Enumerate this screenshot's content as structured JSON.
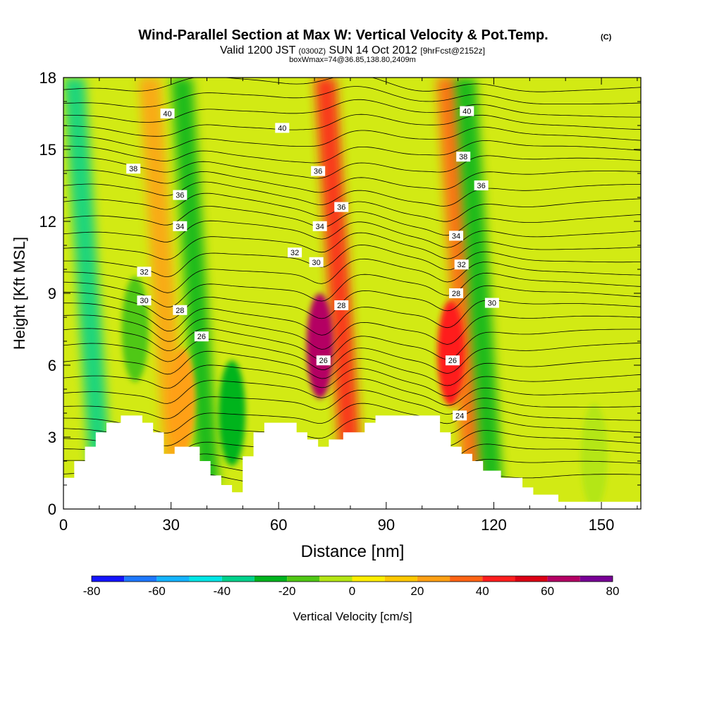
{
  "chart_data": {
    "type": "heatmap",
    "title": "Wind-Parallel Section at Max W: Vertical Velocity & Pot.Temp.",
    "title_mark": "(C)",
    "subtitle": {
      "pre": "Valid 1200 JST",
      "zulu": "(0300Z)",
      "date": "SUN 14 Oct 2012",
      "forecast": "[9hrFcst@2152z]"
    },
    "info_line": "boxWmax=74@36.85,138.80,2409m",
    "xlabel": "Distance [nm]",
    "ylabel": "Height [Kft MSL]",
    "xlim": [
      0,
      161
    ],
    "ylim": [
      0,
      18
    ],
    "x_ticks": [
      0,
      30,
      60,
      90,
      120,
      150
    ],
    "y_ticks": [
      0,
      3,
      6,
      9,
      12,
      15,
      18
    ],
    "grid": false,
    "colorbar": {
      "label": "Vertical Velocity [cm/s]",
      "placement": "bottom",
      "levels": [
        -80,
        -70,
        -60,
        -50,
        -40,
        -30,
        -20,
        -10,
        0,
        10,
        20,
        30,
        40,
        50,
        60,
        70,
        80
      ],
      "tick_labels": [
        -80,
        -60,
        -40,
        -20,
        0,
        20,
        40,
        60,
        80
      ],
      "colors": [
        "#1414ff",
        "#1e78ff",
        "#14b4ff",
        "#00e6e6",
        "#00d28c",
        "#00b41e",
        "#50c814",
        "#b4e614",
        "#ffee00",
        "#ffc800",
        "#ffa014",
        "#ff6414",
        "#ff1e1e",
        "#dc0014",
        "#b40064",
        "#780096"
      ]
    },
    "velocity_bands": [
      {
        "x": 3,
        "w": 3,
        "v": -40
      },
      {
        "x": 24,
        "w": 3,
        "v": 25
      },
      {
        "x": 33,
        "w": 3,
        "v": -22
      },
      {
        "x": 73,
        "w": 3,
        "v": 45
      },
      {
        "x": 107,
        "w": 3,
        "v": 38
      },
      {
        "x": 112,
        "w": 3,
        "v": -28
      }
    ],
    "velocity_cells": [
      {
        "x": 71.5,
        "z": 6.8,
        "v": 65
      },
      {
        "x": 108,
        "z": 6.5,
        "v": 45
      },
      {
        "x": 33,
        "z": 4.5,
        "v": 22
      },
      {
        "x": 47,
        "z": 4.0,
        "v": -22
      },
      {
        "x": 148,
        "z": 2.2,
        "v": -8
      },
      {
        "x": 20,
        "z": 7.5,
        "v": -15
      }
    ],
    "terrain": [
      [
        0,
        1.3
      ],
      [
        3,
        1.3
      ],
      [
        3,
        2.0
      ],
      [
        6,
        2.0
      ],
      [
        6,
        2.6
      ],
      [
        9,
        2.6
      ],
      [
        9,
        3.2
      ],
      [
        12,
        3.2
      ],
      [
        12,
        3.6
      ],
      [
        16,
        3.6
      ],
      [
        16,
        3.9
      ],
      [
        22,
        3.9
      ],
      [
        22,
        3.6
      ],
      [
        25,
        3.6
      ],
      [
        25,
        3.2
      ],
      [
        28,
        3.2
      ],
      [
        28,
        2.3
      ],
      [
        31,
        2.3
      ],
      [
        31,
        2.6
      ],
      [
        38,
        2.6
      ],
      [
        38,
        2.0
      ],
      [
        41,
        2.0
      ],
      [
        41,
        1.4
      ],
      [
        44,
        1.4
      ],
      [
        44,
        1.0
      ],
      [
        47,
        1.0
      ],
      [
        47,
        0.7
      ],
      [
        50,
        0.7
      ],
      [
        50,
        2.2
      ],
      [
        53,
        2.2
      ],
      [
        53,
        3.2
      ],
      [
        56,
        3.2
      ],
      [
        56,
        3.6
      ],
      [
        65,
        3.6
      ],
      [
        65,
        3.2
      ],
      [
        68,
        3.2
      ],
      [
        68,
        2.9
      ],
      [
        71,
        2.9
      ],
      [
        71,
        2.6
      ],
      [
        74,
        2.6
      ],
      [
        74,
        2.9
      ],
      [
        78,
        2.9
      ],
      [
        78,
        3.2
      ],
      [
        84,
        3.2
      ],
      [
        84,
        3.6
      ],
      [
        87,
        3.6
      ],
      [
        87,
        3.9
      ],
      [
        105,
        3.9
      ],
      [
        105,
        3.2
      ],
      [
        108,
        3.2
      ],
      [
        108,
        2.6
      ],
      [
        111,
        2.6
      ],
      [
        111,
        2.3
      ],
      [
        114,
        2.3
      ],
      [
        114,
        2.0
      ],
      [
        117,
        2.0
      ],
      [
        117,
        1.6
      ],
      [
        122,
        1.6
      ],
      [
        122,
        1.3
      ],
      [
        128,
        1.3
      ],
      [
        128,
        0.9
      ],
      [
        131,
        0.9
      ],
      [
        131,
        0.6
      ],
      [
        138,
        0.6
      ],
      [
        138,
        0.3
      ],
      [
        161,
        0.3
      ]
    ],
    "contour_labels": [
      {
        "x": 29,
        "z": 16.5,
        "text": "40"
      },
      {
        "x": 61,
        "z": 15.9,
        "text": "40"
      },
      {
        "x": 112.5,
        "z": 16.6,
        "text": "40"
      },
      {
        "x": 19.5,
        "z": 14.2,
        "text": "38"
      },
      {
        "x": 111.5,
        "z": 14.7,
        "text": "38"
      },
      {
        "x": 32.5,
        "z": 13.1,
        "text": "36"
      },
      {
        "x": 71,
        "z": 14.1,
        "text": "36"
      },
      {
        "x": 77.5,
        "z": 12.6,
        "text": "36"
      },
      {
        "x": 116.5,
        "z": 13.5,
        "text": "36"
      },
      {
        "x": 32.5,
        "z": 11.8,
        "text": "34"
      },
      {
        "x": 71.5,
        "z": 11.8,
        "text": "34"
      },
      {
        "x": 109.5,
        "z": 11.4,
        "text": "34"
      },
      {
        "x": 22.5,
        "z": 9.9,
        "text": "32"
      },
      {
        "x": 64.5,
        "z": 10.7,
        "text": "32"
      },
      {
        "x": 111,
        "z": 10.2,
        "text": "32"
      },
      {
        "x": 22.5,
        "z": 8.7,
        "text": "30"
      },
      {
        "x": 70.5,
        "z": 10.3,
        "text": "30"
      },
      {
        "x": 119.5,
        "z": 8.6,
        "text": "30"
      },
      {
        "x": 32.5,
        "z": 8.3,
        "text": "28"
      },
      {
        "x": 77.5,
        "z": 8.5,
        "text": "28"
      },
      {
        "x": 109.5,
        "z": 9.0,
        "text": "28"
      },
      {
        "x": 38.5,
        "z": 7.2,
        "text": "26"
      },
      {
        "x": 72.5,
        "z": 6.2,
        "text": "26"
      },
      {
        "x": 108.5,
        "z": 6.2,
        "text": "26"
      },
      {
        "x": 110.5,
        "z": 3.9,
        "text": "24"
      }
    ]
  }
}
